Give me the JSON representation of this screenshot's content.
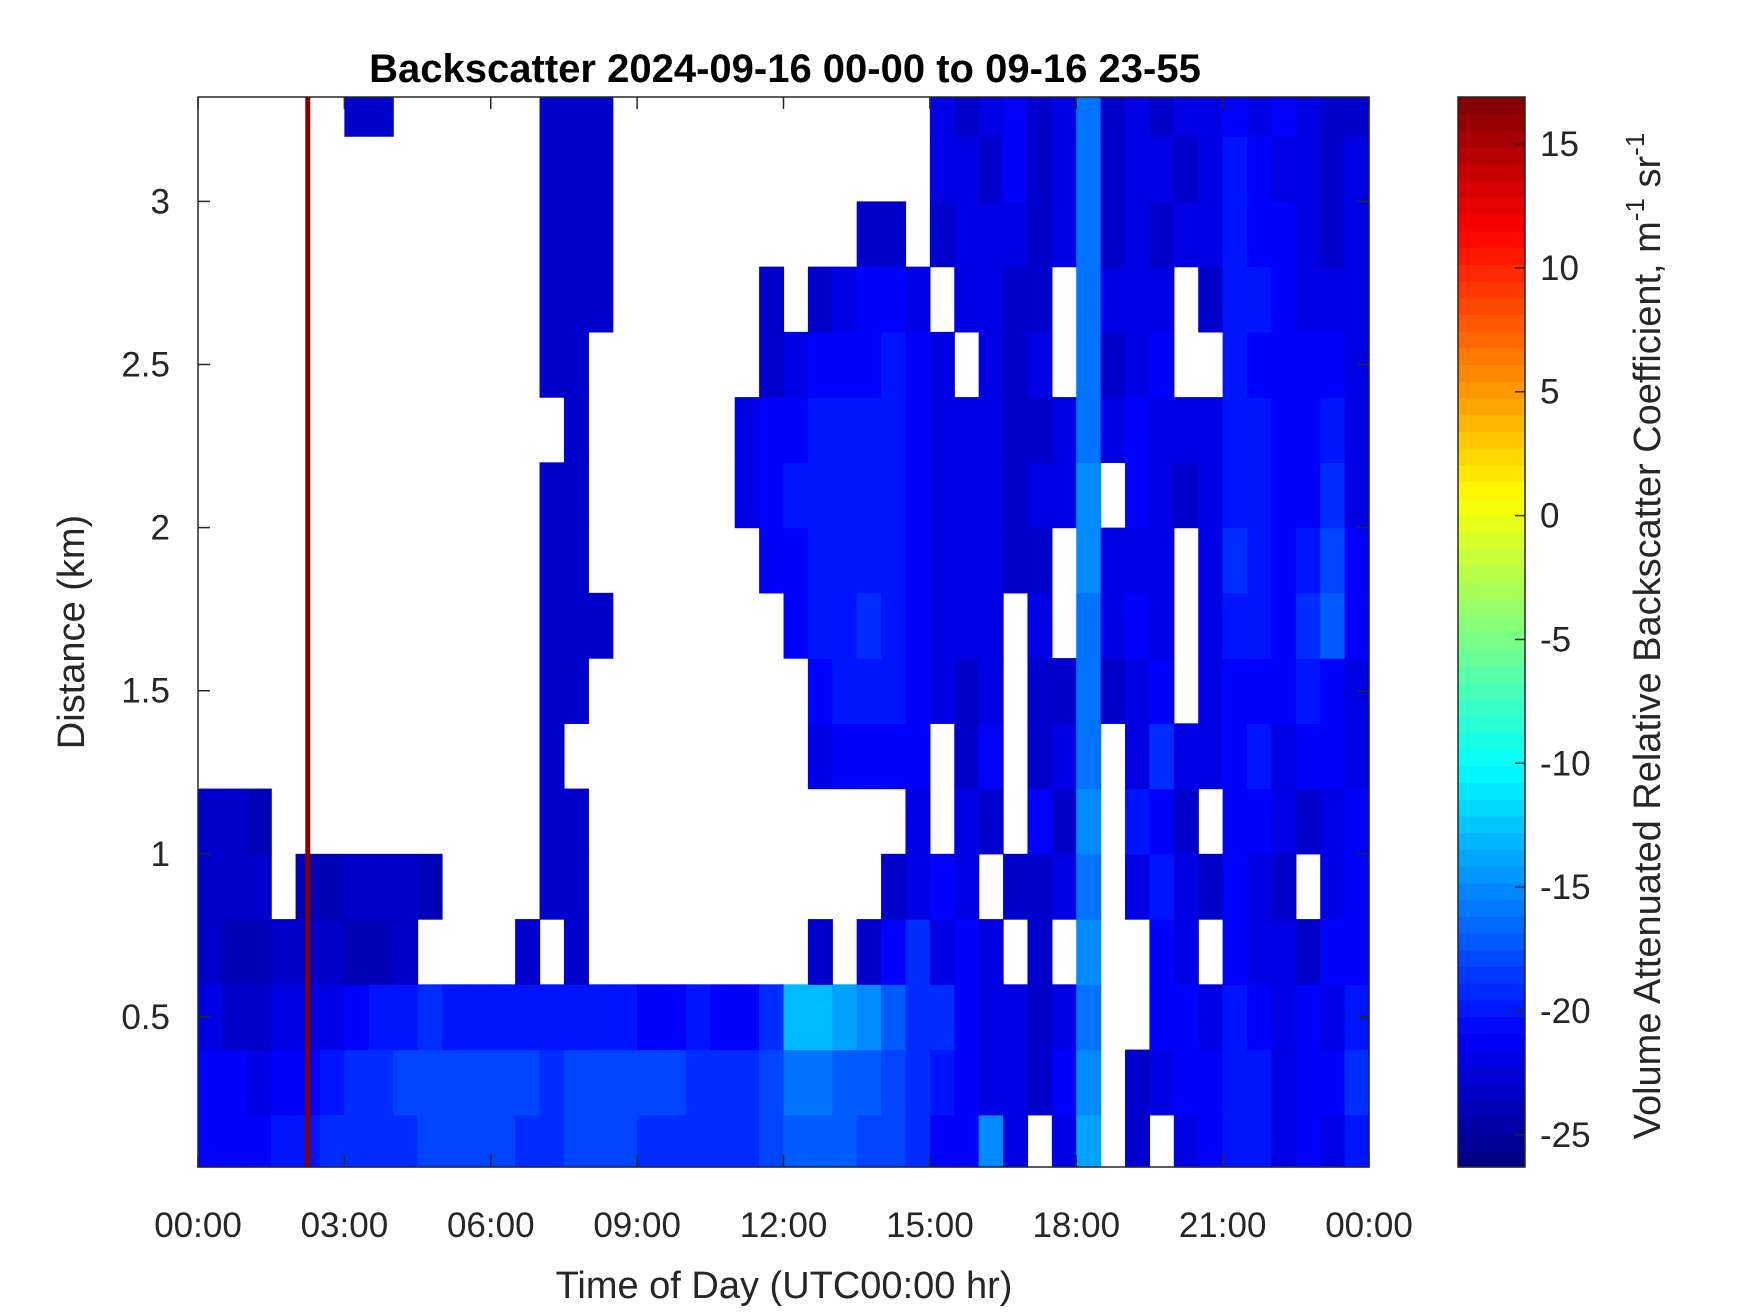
{
  "chart_data": {
    "type": "heatmap",
    "title": "Backscatter 2024-09-16 00-00 to 09-16 23-55",
    "xlabel": "Time of Day (UTC00:00 hr)",
    "ylabel": "Distance (km)",
    "colorbar_label": "Volume Attenuated Relative Backscatter Coefficient, m",
    "colorbar_unit_parts": [
      "-1",
      " sr",
      "-1"
    ],
    "colormap": "jet",
    "clim": [
      -26.3,
      16.9
    ],
    "colorbar_ticks": [
      -25,
      -20,
      -15,
      -10,
      -5,
      0,
      5,
      10,
      15
    ],
    "colorbar_tick_labels": [
      "-25",
      "-20",
      "-15",
      "-10",
      "-5",
      "0",
      "5",
      "10",
      "15"
    ],
    "xlim_hours": [
      0,
      24
    ],
    "xticks_hours": [
      0,
      3,
      6,
      9,
      12,
      15,
      18,
      21,
      24
    ],
    "xtick_labels": [
      "00:00",
      "03:00",
      "06:00",
      "09:00",
      "12:00",
      "15:00",
      "18:00",
      "21:00",
      "00:00"
    ],
    "ylim": [
      0.04,
      3.32
    ],
    "yticks": [
      0.5,
      1,
      1.5,
      2,
      2.5,
      3
    ],
    "ytick_labels": [
      "0.5",
      "1",
      "1.5",
      "2",
      "2.5",
      "3"
    ],
    "grid": false,
    "missing_color": "#ffffff",
    "saturated_profile": {
      "time": "02:15",
      "value": 16.9
    },
    "x": [
      "00:15",
      "00:45",
      "01:15",
      "01:45",
      "02:15",
      "02:45",
      "03:15",
      "03:45",
      "04:15",
      "04:45",
      "05:15",
      "05:45",
      "06:15",
      "06:45",
      "07:15",
      "07:45",
      "08:15",
      "08:45",
      "09:15",
      "09:45",
      "10:15",
      "10:45",
      "11:15",
      "11:45",
      "12:15",
      "12:45",
      "13:15",
      "13:45",
      "14:15",
      "14:45",
      "15:15",
      "15:45",
      "16:15",
      "16:45",
      "17:15",
      "17:45",
      "18:15",
      "18:45",
      "19:15",
      "19:45",
      "20:15",
      "20:45",
      "21:15",
      "21:45",
      "22:15",
      "22:45",
      "23:15",
      "23:45"
    ],
    "y": [
      0.1,
      0.3,
      0.5,
      0.7,
      0.9,
      1.1,
      1.3,
      1.5,
      1.7,
      1.9,
      2.1,
      2.3,
      2.5,
      2.7,
      2.9,
      3.1,
      3.3
    ],
    "z": [
      [
        -21,
        -21,
        -21,
        -20,
        -20,
        -19,
        -19,
        -19,
        -19,
        -18,
        -18,
        -18,
        -18,
        -19,
        -19,
        -18,
        -18,
        -18,
        -19,
        -19,
        -19,
        -19,
        -19,
        -18,
        -17,
        -17,
        -17,
        -18,
        -18,
        -19,
        -21,
        -21,
        -15,
        -22,
        null,
        -22,
        -14,
        null,
        -23,
        null,
        -22,
        -21,
        -20,
        -20,
        -22,
        -21,
        -22,
        -20
      ],
      [
        -21,
        -21,
        -22,
        -21,
        -21,
        -20,
        -19,
        -19,
        -18,
        -18,
        -18,
        -18,
        -18,
        -18,
        -19,
        -18,
        -18,
        -18,
        -18,
        -18,
        -19,
        -19,
        -19,
        -18,
        -16,
        -16,
        -17,
        -17,
        -18,
        -19,
        -20,
        -21,
        -22,
        -22,
        -23,
        -21,
        -15,
        null,
        -23,
        -22,
        -21,
        -21,
        -20,
        -20,
        -22,
        -21,
        -21,
        -19
      ],
      [
        -22,
        -23,
        -23,
        -22,
        -22,
        -22,
        -21,
        -20,
        -20,
        -19,
        -20,
        -20,
        -20,
        -20,
        -20,
        -20,
        -20,
        -20,
        -21,
        -21,
        -20,
        -21,
        -21,
        -19,
        -13,
        -13,
        -14,
        -15,
        -17,
        -19,
        -19,
        -21,
        -22,
        -22,
        -23,
        -22,
        -16,
        null,
        null,
        -21,
        -21,
        -22,
        -20,
        -21,
        -22,
        -21,
        -22,
        -20
      ],
      [
        -23,
        -24,
        -24,
        -23,
        -23,
        -23,
        -24,
        -24,
        -23,
        null,
        null,
        null,
        null,
        -23,
        null,
        -23,
        null,
        null,
        null,
        null,
        null,
        null,
        null,
        null,
        null,
        -23,
        null,
        -23,
        -21,
        -19,
        -22,
        -21,
        -22,
        null,
        -23,
        null,
        -15,
        null,
        null,
        -21,
        -22,
        null,
        -21,
        -22,
        -22,
        -23,
        -21,
        -21
      ],
      [
        -23,
        -23,
        -23,
        null,
        -24,
        -24,
        -23,
        -23,
        -23,
        -24,
        null,
        null,
        null,
        null,
        -23,
        -23,
        null,
        null,
        null,
        null,
        null,
        null,
        null,
        null,
        null,
        null,
        null,
        null,
        -23,
        -22,
        -21,
        -22,
        null,
        -23,
        -23,
        -22,
        -16,
        null,
        -22,
        -20,
        -22,
        -23,
        -21,
        -22,
        -23,
        null,
        -22,
        -21
      ],
      [
        -23,
        -23,
        -24,
        null,
        null,
        null,
        null,
        null,
        null,
        null,
        null,
        null,
        null,
        null,
        -23,
        -23,
        null,
        null,
        null,
        null,
        null,
        null,
        null,
        null,
        null,
        null,
        null,
        null,
        null,
        -22,
        null,
        -22,
        -23,
        null,
        -21,
        -23,
        -15,
        null,
        -20,
        -21,
        -23,
        null,
        -21,
        -21,
        -22,
        -23,
        -22,
        -21
      ],
      [
        null,
        null,
        null,
        null,
        null,
        null,
        null,
        null,
        null,
        null,
        null,
        null,
        null,
        null,
        -23,
        null,
        null,
        null,
        null,
        null,
        null,
        null,
        null,
        null,
        null,
        -22,
        -21,
        -21,
        -21,
        -21,
        null,
        -23,
        -21,
        null,
        -23,
        -22,
        -16,
        null,
        -22,
        -19,
        -22,
        -22,
        -21,
        -20,
        -22,
        -21,
        -21,
        -22
      ],
      [
        null,
        null,
        null,
        null,
        null,
        null,
        null,
        null,
        null,
        null,
        null,
        null,
        null,
        null,
        -23,
        -23,
        null,
        null,
        null,
        null,
        null,
        null,
        null,
        null,
        null,
        -21,
        -20,
        -20,
        -20,
        -21,
        -22,
        -23,
        -22,
        null,
        -23,
        -23,
        -16,
        -23,
        -22,
        -21,
        null,
        -22,
        -21,
        -21,
        -21,
        -20,
        -21,
        -22
      ],
      [
        null,
        null,
        null,
        null,
        null,
        null,
        null,
        null,
        null,
        null,
        null,
        null,
        null,
        null,
        -23,
        -23,
        -23,
        null,
        null,
        null,
        null,
        null,
        null,
        null,
        -21,
        -20,
        -20,
        -19,
        -20,
        -21,
        -22,
        -22,
        -22,
        null,
        -22,
        null,
        -16,
        -22,
        -21,
        -22,
        null,
        -22,
        -20,
        -20,
        -21,
        -19,
        -17,
        -21
      ],
      [
        null,
        null,
        null,
        null,
        null,
        null,
        null,
        null,
        null,
        null,
        null,
        null,
        null,
        null,
        -23,
        -23,
        null,
        null,
        null,
        null,
        null,
        null,
        null,
        -21,
        -21,
        -20,
        -20,
        -20,
        -20,
        -21,
        -22,
        -22,
        -22,
        -23,
        -23,
        null,
        -15,
        -22,
        -22,
        -22,
        null,
        -22,
        -19,
        -20,
        -21,
        -20,
        -18,
        -21
      ],
      [
        null,
        null,
        null,
        null,
        null,
        null,
        null,
        null,
        null,
        null,
        null,
        null,
        null,
        null,
        -23,
        -23,
        null,
        null,
        null,
        null,
        null,
        null,
        -22,
        -21,
        -20,
        -20,
        -20,
        -20,
        -20,
        -21,
        -22,
        -22,
        -22,
        -23,
        -22,
        -22,
        -15,
        null,
        -21,
        -22,
        -23,
        -22,
        -20,
        -20,
        -21,
        -21,
        -19,
        -22
      ],
      [
        null,
        null,
        null,
        null,
        null,
        null,
        null,
        null,
        null,
        null,
        null,
        null,
        null,
        null,
        null,
        -23,
        null,
        null,
        null,
        null,
        null,
        null,
        -22,
        -21,
        -21,
        -20,
        -20,
        -20,
        -20,
        -21,
        -22,
        -22,
        -22,
        -23,
        -23,
        -22,
        -16,
        -22,
        -21,
        -22,
        -22,
        -22,
        -20,
        -20,
        -21,
        -21,
        -20,
        -22
      ],
      [
        null,
        null,
        null,
        null,
        null,
        null,
        null,
        null,
        null,
        null,
        null,
        null,
        null,
        null,
        -23,
        -23,
        null,
        null,
        null,
        null,
        null,
        null,
        null,
        -23,
        -22,
        -21,
        -21,
        -21,
        -20,
        -21,
        -22,
        null,
        -22,
        -23,
        -22,
        null,
        -16,
        -23,
        -22,
        -21,
        null,
        null,
        -20,
        -21,
        -21,
        -21,
        -21,
        -22
      ],
      [
        null,
        null,
        null,
        null,
        null,
        null,
        null,
        null,
        null,
        null,
        null,
        null,
        null,
        null,
        -23,
        -23,
        -23,
        null,
        null,
        null,
        null,
        null,
        null,
        -23,
        null,
        -23,
        -22,
        -21,
        -21,
        -22,
        null,
        -22,
        -22,
        -23,
        -23,
        null,
        -16,
        -22,
        -22,
        -22,
        null,
        -23,
        -20,
        -20,
        -21,
        -22,
        -22,
        -22
      ],
      [
        null,
        null,
        null,
        null,
        null,
        null,
        null,
        null,
        null,
        null,
        null,
        null,
        null,
        null,
        -23,
        -23,
        -23,
        null,
        null,
        null,
        null,
        null,
        null,
        null,
        null,
        null,
        null,
        -23,
        -23,
        null,
        -23,
        -22,
        -22,
        -22,
        -23,
        -22,
        -16,
        -23,
        -22,
        -23,
        -22,
        -22,
        -20,
        -21,
        -21,
        -22,
        -23,
        -22
      ],
      [
        null,
        null,
        null,
        null,
        null,
        null,
        null,
        null,
        null,
        null,
        null,
        null,
        null,
        null,
        -23,
        -23,
        -23,
        null,
        null,
        null,
        null,
        null,
        null,
        null,
        null,
        null,
        null,
        null,
        null,
        null,
        -22,
        -22,
        -23,
        -21,
        -23,
        -22,
        -16,
        -23,
        -22,
        -22,
        -23,
        -22,
        -20,
        -21,
        -22,
        -22,
        -23,
        -22
      ],
      [
        null,
        null,
        null,
        null,
        null,
        null,
        -23,
        -23,
        null,
        null,
        null,
        null,
        null,
        null,
        -23,
        -23,
        -23,
        null,
        null,
        null,
        null,
        null,
        null,
        null,
        null,
        null,
        null,
        null,
        null,
        null,
        -22,
        -23,
        -22,
        -21,
        -23,
        -22,
        -16,
        -23,
        -22,
        -23,
        -22,
        -22,
        -21,
        -22,
        -21,
        -22,
        -23,
        -23
      ]
    ]
  }
}
